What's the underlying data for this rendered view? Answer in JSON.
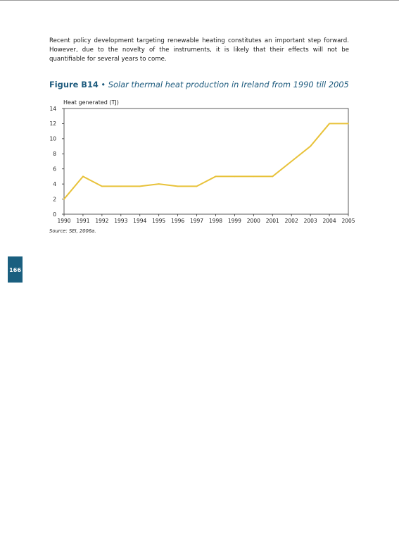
{
  "paragraph": "Recent policy development targeting renewable heating constitutes an important step forward. However, due to the novelty of the instruments, it is likely that their effects will not be quantifiable for several years to come.",
  "figure": {
    "number": "Figure B14",
    "separator": "•",
    "caption": "Solar thermal heat production in Ireland from 1990 till 2005",
    "source": "Source: SEI, 2006a."
  },
  "page_number": "166",
  "colors": {
    "line": "#e8c23a",
    "title": "#1f5c7f",
    "page_tab": "#1a5f7f"
  },
  "chart_data": {
    "type": "line",
    "ylabel": "Heat generated (TJ)",
    "xlabel": "",
    "x": [
      "1990",
      "1991",
      "1992",
      "1993",
      "1994",
      "1995",
      "1996",
      "1997",
      "1998",
      "1999",
      "2000",
      "2001",
      "2002",
      "2003",
      "2004",
      "2005"
    ],
    "series": [
      {
        "values": [
          2,
          5,
          3.7,
          3.7,
          3.7,
          4,
          3.7,
          3.7,
          5,
          5,
          5,
          5,
          7,
          9,
          12,
          12
        ]
      }
    ],
    "ylim": [
      0,
      14
    ],
    "yticks": [
      0,
      2,
      4,
      6,
      8,
      10,
      12,
      14
    ],
    "grid": false,
    "legend": "none"
  }
}
